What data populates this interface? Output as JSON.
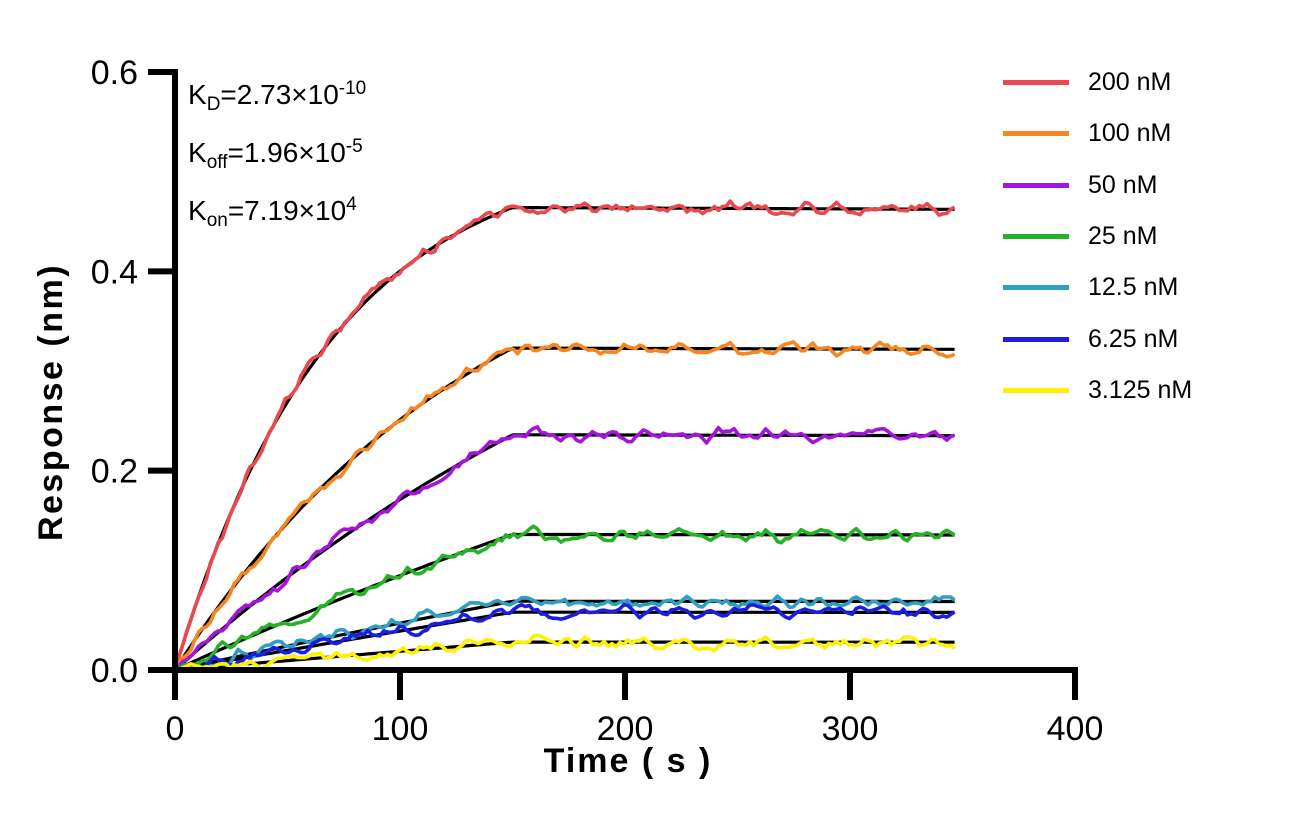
{
  "figure": {
    "background": "#FFFFFF"
  },
  "kinetics": [
    {
      "k": "K",
      "sub": "D",
      "val": "=2.73×10",
      "exp": "-10"
    },
    {
      "k": "K",
      "sub": "off",
      "val": "=1.96×10",
      "exp": "-5"
    },
    {
      "k": "K",
      "sub": "on",
      "val": "=7.19×10",
      "exp": "4"
    }
  ],
  "chart_data": {
    "type": "line",
    "title": "",
    "xlabel": "Time ( s )",
    "ylabel": "Response (nm)",
    "xlim": [
      0,
      400
    ],
    "ylim": [
      0,
      0.6
    ],
    "xticks": [
      "0",
      "100",
      "200",
      "300",
      "400"
    ],
    "xtick_values": [
      0,
      100,
      200,
      300,
      400
    ],
    "yticks": [
      "0.0",
      "0.2",
      "0.4",
      "0.6"
    ],
    "ytick_values": [
      0,
      0.2,
      0.4,
      0.6
    ],
    "grid": false,
    "legend_position": "right",
    "axis_color": "#000000",
    "fit_color": "#000000",
    "association_end_s": 150,
    "curve_end_s": 347,
    "koff_per_s": 1.96e-05,
    "noise_amplitude_nm": 0.0062,
    "series": [
      {
        "label": "200 nM",
        "concentration_nM": 200,
        "color": "#E8484E",
        "response_at_150s_nm": 0.464,
        "kobs_per_s": 0.0144
      },
      {
        "label": "100 nM",
        "concentration_nM": 100,
        "color": "#F6861F",
        "response_at_150s_nm": 0.323,
        "kobs_per_s": 0.0072
      },
      {
        "label": "50 nM",
        "concentration_nM": 50,
        "color": "#A414DC",
        "response_at_150s_nm": 0.236,
        "kobs_per_s": 0.0036
      },
      {
        "label": "25 nM",
        "concentration_nM": 25,
        "color": "#26B226",
        "response_at_150s_nm": 0.136,
        "kobs_per_s": 0.0018
      },
      {
        "label": "12.5 nM",
        "concentration_nM": 12.5,
        "color": "#2E9FC0",
        "response_at_150s_nm": 0.069,
        "kobs_per_s": 0.0009
      },
      {
        "label": "6.25 nM",
        "concentration_nM": 6.25,
        "color": "#1B1EDF",
        "response_at_150s_nm": 0.058,
        "kobs_per_s": 0.0004
      },
      {
        "label": "3.125 nM",
        "concentration_nM": 3.125,
        "color": "#FFF200",
        "response_at_150s_nm": 0.028,
        "kobs_per_s": 0.000225
      }
    ]
  }
}
